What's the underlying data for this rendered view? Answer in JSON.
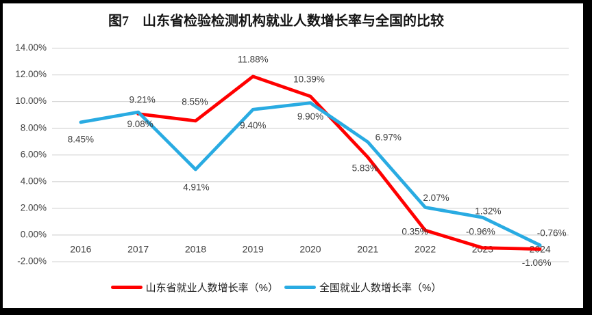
{
  "style": {
    "frame_color": "#000000",
    "background": "#ffffff",
    "gridline_color": "#d9d9d9",
    "axis_text_color": "#404040",
    "series_red": "#ff0000",
    "series_blue": "#29abe2"
  },
  "chart_data": {
    "type": "line",
    "title": "图7　山东省检验检测机构就业人数增长率与全国的比较",
    "categories": [
      "2016",
      "2017",
      "2018",
      "2019",
      "2020",
      "2021",
      "2022",
      "2023",
      "2024"
    ],
    "y_axis": {
      "min": -2,
      "max": 14,
      "step": 2,
      "tick_labels": [
        "14.00%",
        "12.00%",
        "10.00%",
        "8.00%",
        "6.00%",
        "4.00%",
        "2.00%",
        "0.00%",
        "-2.00%"
      ]
    },
    "grid": true,
    "legend_position": "bottom",
    "series": [
      {
        "name": "山东省就业人数增长率（%）",
        "color": "#ff0000",
        "points": [
          {
            "x": "2017",
            "value": 9.08,
            "label": "9.08%",
            "label_offset": [
              3,
              16
            ]
          },
          {
            "x": "2018",
            "value": 8.55,
            "label": "8.55%",
            "label_offset": [
              -1,
              -27
            ]
          },
          {
            "x": "2019",
            "value": 11.88,
            "label": "11.88%",
            "label_offset": [
              0,
              -24
            ]
          },
          {
            "x": "2020",
            "value": 10.39,
            "label": "10.39%",
            "label_offset": [
              -2,
              -24
            ]
          },
          {
            "x": "2021",
            "value": 5.83,
            "label": "5.83%",
            "label_offset": [
              -4,
              17
            ]
          },
          {
            "x": "2022",
            "value": 0.35,
            "label": "0.35%",
            "label_offset": [
              -15,
              3
            ]
          },
          {
            "x": "2023",
            "value": -0.96,
            "label": "-0.96%",
            "label_offset": [
              -3,
              -23
            ]
          },
          {
            "x": "2024",
            "value": -1.06,
            "label": "-1.06%",
            "label_offset": [
              -5,
              21
            ]
          }
        ]
      },
      {
        "name": "全国就业人数增长率（%）",
        "color": "#29abe2",
        "points": [
          {
            "x": "2016",
            "value": 8.45,
            "label": "8.45%",
            "label_offset": [
              0,
              26
            ]
          },
          {
            "x": "2017",
            "value": 9.21,
            "label": "9.21%",
            "label_offset": [
              6,
              -17
            ]
          },
          {
            "x": "2018",
            "value": 4.91,
            "label": "4.91%",
            "label_offset": [
              1,
              27
            ]
          },
          {
            "x": "2019",
            "value": 9.4,
            "label": "9.40%",
            "label_offset": [
              0,
              24
            ]
          },
          {
            "x": "2020",
            "value": 9.9,
            "label": "9.90%",
            "label_offset": [
              0,
              21
            ]
          },
          {
            "x": "2021",
            "value": 6.97,
            "label": "6.97%",
            "label_offset": [
              30,
              -6
            ]
          },
          {
            "x": "2022",
            "value": 2.07,
            "label": "2.07%",
            "label_offset": [
              16,
              -13
            ]
          },
          {
            "x": "2023",
            "value": 1.32,
            "label": "1.32%",
            "label_offset": [
              8,
              -8
            ]
          },
          {
            "x": "2024",
            "value": -0.76,
            "label": "-0.76%",
            "label_offset": [
              17,
              -17
            ]
          }
        ]
      }
    ]
  }
}
